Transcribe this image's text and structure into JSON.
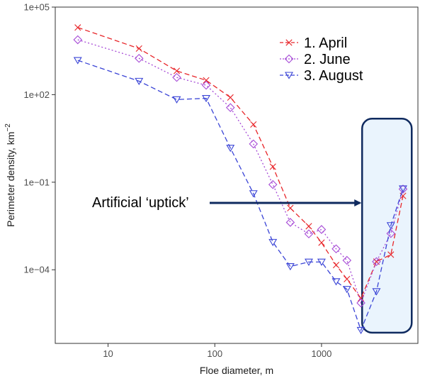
{
  "chart_data": {
    "type": "line",
    "xlabel": "Floe diameter, m",
    "ylabel": "Perimeter density, km",
    "ylabel_superscript": "−2",
    "x_scale": "log",
    "y_scale": "log",
    "xlim": [
      3.2,
      8000
    ],
    "ylim": [
      3e-07,
      100000
    ],
    "x_ticks": [
      {
        "value": 10,
        "label": "10"
      },
      {
        "value": 100,
        "label": "100"
      },
      {
        "value": 1000,
        "label": "1000"
      }
    ],
    "y_ticks": [
      {
        "value": 100000,
        "label": "1e+05"
      },
      {
        "value": 100,
        "label": "1e+02"
      },
      {
        "value": 0.1,
        "label": "1e−01"
      },
      {
        "value": 0.0001,
        "label": "1e−04"
      }
    ],
    "grid": false,
    "legend_position": "top-right",
    "series": [
      {
        "name": "1. April",
        "color": "#e8262a",
        "marker": "x",
        "line_style": "dashed",
        "x": [
          5.2,
          19.5,
          44,
          83,
          140,
          230,
          350,
          510,
          760,
          1000,
          1370,
          1730,
          2340,
          3270,
          4460,
          5800
        ],
        "y": [
          20000,
          3800,
          650,
          310,
          80,
          9.5,
          0.34,
          0.013,
          0.0031,
          0.00085,
          0.000145,
          4.8e-05,
          1.05e-05,
          0.00019,
          0.00033,
          0.034
        ]
      },
      {
        "name": "2. June",
        "color": "#a64ad6",
        "marker": "diamond",
        "line_style": "dotted",
        "x": [
          5.2,
          19.5,
          44,
          83,
          140,
          230,
          350,
          510,
          760,
          1000,
          1370,
          1730,
          2340,
          3270,
          4460,
          5800
        ],
        "y": [
          7600,
          1750,
          390,
          210,
          36,
          2.05,
          0.083,
          0.0042,
          0.0017,
          0.0024,
          0.00052,
          0.00021,
          7.3e-06,
          0.00019,
          0.00175,
          0.058
        ]
      },
      {
        "name": "3. August",
        "color": "#3a44d6",
        "marker": "triangle-down",
        "line_style": "dashed",
        "x": [
          5.2,
          19.5,
          44,
          83,
          140,
          230,
          350,
          510,
          760,
          1000,
          1370,
          1730,
          2340,
          3270,
          4460,
          5800
        ],
        "y": [
          1500,
          290,
          68,
          75,
          1.48,
          0.041,
          0.00088,
          0.00013,
          0.000185,
          0.000185,
          3.95e-05,
          2.15e-05,
          8.5e-07,
          1.8e-05,
          0.0033,
          0.06
        ]
      }
    ],
    "annotation": {
      "text": "Artificial ‘uptick’",
      "arrow_color": "#0f2a5f",
      "box_fill": "#eaf4fd",
      "box_stroke": "#0f2a5f",
      "box_x_range": [
        2400,
        7000
      ],
      "box_y_range": [
        7e-07,
        15
      ]
    }
  }
}
